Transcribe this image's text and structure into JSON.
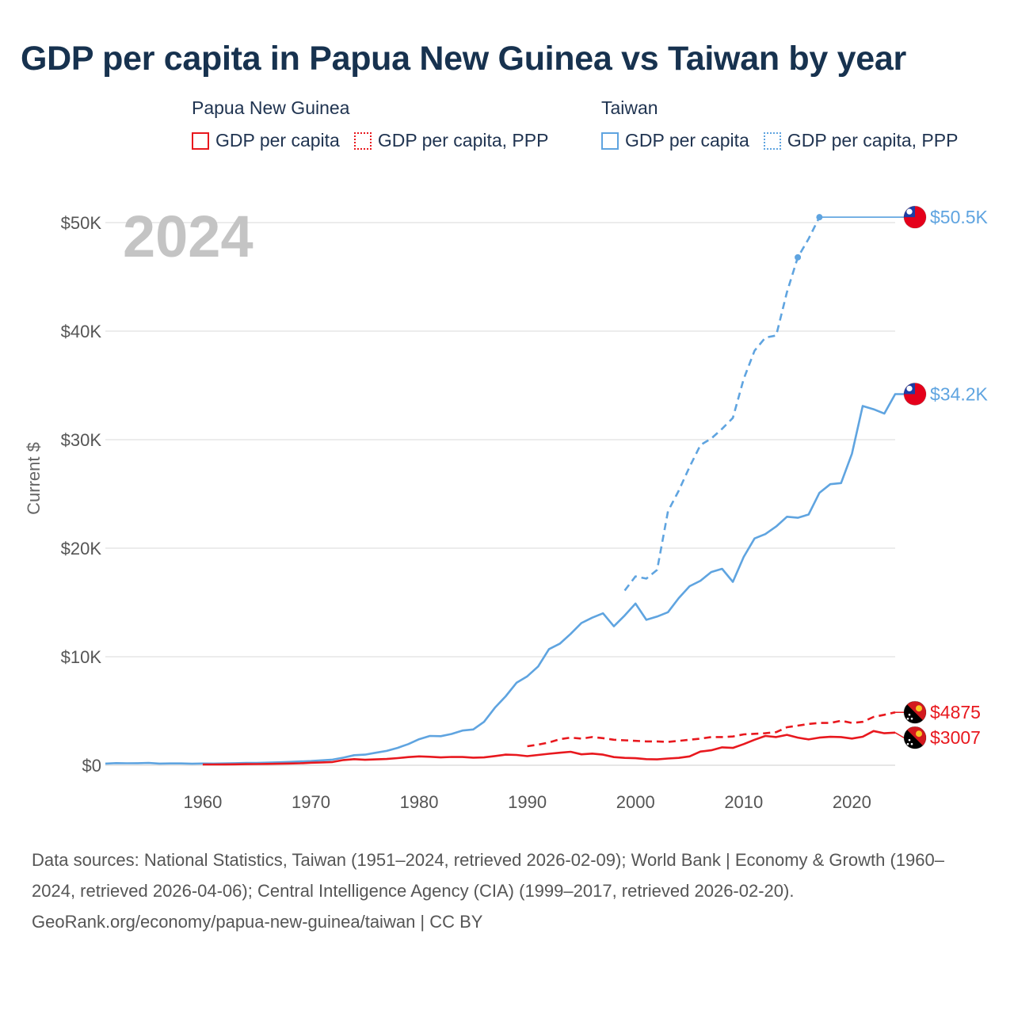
{
  "title": "GDP per capita in Papua New Guinea vs Taiwan by year",
  "legend": {
    "groups": [
      {
        "name": "Papua New Guinea",
        "color": "#e8181e",
        "items": [
          {
            "label": "GDP per capita",
            "style": "solid"
          },
          {
            "label": "GDP per capita, PPP",
            "style": "dotted"
          }
        ]
      },
      {
        "name": "Taiwan",
        "color": "#5fa4e0",
        "items": [
          {
            "label": "GDP per capita",
            "style": "solid"
          },
          {
            "label": "GDP per capita, PPP",
            "style": "dotted"
          }
        ]
      }
    ]
  },
  "footer": {
    "sources": "Data sources: National Statistics, Taiwan (1951–2024, retrieved 2026-02-09); World Bank | Economy & Growth (1960–2024, retrieved 2026-04-06); Central Intelligence Agency (CIA) (1999–2017, retrieved 2026-02-20).",
    "credit": "GeoRank.org/economy/papua-new-guinea/taiwan | CC BY"
  },
  "chart_data": {
    "type": "line",
    "title": "GDP per capita in Papua New Guinea vs Taiwan by year",
    "year_watermark": "2024",
    "xlabel": "",
    "ylabel": "Current $",
    "xlim": [
      1951,
      2024
    ],
    "ylim": [
      0,
      50500
    ],
    "x_ticks": [
      1960,
      1970,
      1980,
      1990,
      2000,
      2010,
      2020
    ],
    "y_ticks": [
      {
        "value": 0,
        "label": "$0"
      },
      {
        "value": 10000,
        "label": "$10K"
      },
      {
        "value": 20000,
        "label": "$20K"
      },
      {
        "value": 30000,
        "label": "$30K"
      },
      {
        "value": 40000,
        "label": "$40K"
      },
      {
        "value": 50000,
        "label": "$50K"
      }
    ],
    "grid": true,
    "series": [
      {
        "name": "Taiwan GDP per capita",
        "country": "Taiwan",
        "color": "#5fa4e0",
        "dash": "solid",
        "end_label": "$34.2K",
        "points": [
          [
            1951,
            154
          ],
          [
            1952,
            200
          ],
          [
            1953,
            180
          ],
          [
            1954,
            190
          ],
          [
            1955,
            210
          ],
          [
            1956,
            150
          ],
          [
            1957,
            170
          ],
          [
            1958,
            170
          ],
          [
            1959,
            140
          ],
          [
            1960,
            160
          ],
          [
            1961,
            150
          ],
          [
            1962,
            170
          ],
          [
            1963,
            190
          ],
          [
            1964,
            220
          ],
          [
            1965,
            220
          ],
          [
            1966,
            240
          ],
          [
            1967,
            270
          ],
          [
            1968,
            310
          ],
          [
            1969,
            350
          ],
          [
            1970,
            390
          ],
          [
            1971,
            450
          ],
          [
            1972,
            520
          ],
          [
            1973,
            700
          ],
          [
            1974,
            930
          ],
          [
            1975,
            980
          ],
          [
            1976,
            1150
          ],
          [
            1977,
            1320
          ],
          [
            1978,
            1600
          ],
          [
            1979,
            1950
          ],
          [
            1980,
            2400
          ],
          [
            1981,
            2700
          ],
          [
            1982,
            2680
          ],
          [
            1983,
            2880
          ],
          [
            1984,
            3200
          ],
          [
            1985,
            3300
          ],
          [
            1986,
            4000
          ],
          [
            1987,
            5300
          ],
          [
            1988,
            6350
          ],
          [
            1989,
            7600
          ],
          [
            1990,
            8200
          ],
          [
            1991,
            9100
          ],
          [
            1992,
            10700
          ],
          [
            1993,
            11200
          ],
          [
            1994,
            12100
          ],
          [
            1995,
            13100
          ],
          [
            1996,
            13600
          ],
          [
            1997,
            14000
          ],
          [
            1998,
            12800
          ],
          [
            1999,
            13800
          ],
          [
            2000,
            14900
          ],
          [
            2001,
            13400
          ],
          [
            2002,
            13700
          ],
          [
            2003,
            14100
          ],
          [
            2004,
            15400
          ],
          [
            2005,
            16500
          ],
          [
            2006,
            17000
          ],
          [
            2007,
            17800
          ],
          [
            2008,
            18100
          ],
          [
            2009,
            16900
          ],
          [
            2010,
            19200
          ],
          [
            2011,
            20900
          ],
          [
            2012,
            21300
          ],
          [
            2013,
            22000
          ],
          [
            2014,
            22900
          ],
          [
            2015,
            22800
          ],
          [
            2016,
            23100
          ],
          [
            2017,
            25100
          ],
          [
            2018,
            25900
          ],
          [
            2019,
            26000
          ],
          [
            2020,
            28700
          ],
          [
            2021,
            33100
          ],
          [
            2022,
            32800
          ],
          [
            2023,
            32400
          ],
          [
            2024,
            34200
          ],
          [
            2025,
            34200
          ]
        ]
      },
      {
        "name": "Taiwan GDP per capita, PPP",
        "country": "Taiwan",
        "color": "#5fa4e0",
        "dash": "dashed",
        "end_label": "$50.5K",
        "points": [
          [
            1999,
            16100
          ],
          [
            2000,
            17400
          ],
          [
            2001,
            17200
          ],
          [
            2002,
            18000
          ],
          [
            2003,
            23400
          ],
          [
            2004,
            25300
          ],
          [
            2005,
            27500
          ],
          [
            2006,
            29500
          ],
          [
            2007,
            30100
          ],
          [
            2008,
            31000
          ],
          [
            2009,
            32000
          ],
          [
            2010,
            35600
          ],
          [
            2011,
            38200
          ],
          [
            2012,
            39400
          ],
          [
            2013,
            39600
          ],
          [
            2014,
            43600
          ],
          [
            2015,
            46800
          ],
          [
            2016,
            48500
          ],
          [
            2017,
            50500
          ]
        ],
        "dots": [
          [
            2015,
            46800
          ],
          [
            2017,
            50500
          ]
        ],
        "carry_forward_to": 2025
      },
      {
        "name": "Papua New Guinea GDP per capita",
        "country": "Papua New Guinea",
        "color": "#e8181e",
        "dash": "solid",
        "end_label": "$3007",
        "points": [
          [
            1960,
            70
          ],
          [
            1961,
            75
          ],
          [
            1962,
            80
          ],
          [
            1963,
            90
          ],
          [
            1964,
            100
          ],
          [
            1965,
            110
          ],
          [
            1966,
            125
          ],
          [
            1967,
            140
          ],
          [
            1968,
            160
          ],
          [
            1969,
            180
          ],
          [
            1970,
            230
          ],
          [
            1971,
            260
          ],
          [
            1972,
            300
          ],
          [
            1973,
            480
          ],
          [
            1974,
            560
          ],
          [
            1975,
            500
          ],
          [
            1976,
            540
          ],
          [
            1977,
            580
          ],
          [
            1978,
            660
          ],
          [
            1979,
            750
          ],
          [
            1980,
            820
          ],
          [
            1981,
            780
          ],
          [
            1982,
            720
          ],
          [
            1983,
            770
          ],
          [
            1984,
            760
          ],
          [
            1985,
            700
          ],
          [
            1986,
            720
          ],
          [
            1987,
            850
          ],
          [
            1988,
            980
          ],
          [
            1989,
            950
          ],
          [
            1990,
            840
          ],
          [
            1991,
            950
          ],
          [
            1992,
            1060
          ],
          [
            1993,
            1150
          ],
          [
            1994,
            1240
          ],
          [
            1995,
            1010
          ],
          [
            1996,
            1070
          ],
          [
            1997,
            980
          ],
          [
            1998,
            750
          ],
          [
            1999,
            680
          ],
          [
            2000,
            650
          ],
          [
            2001,
            560
          ],
          [
            2002,
            540
          ],
          [
            2003,
            620
          ],
          [
            2004,
            680
          ],
          [
            2005,
            820
          ],
          [
            2006,
            1260
          ],
          [
            2007,
            1380
          ],
          [
            2008,
            1650
          ],
          [
            2009,
            1600
          ],
          [
            2010,
            1950
          ],
          [
            2011,
            2350
          ],
          [
            2012,
            2700
          ],
          [
            2013,
            2600
          ],
          [
            2014,
            2800
          ],
          [
            2015,
            2550
          ],
          [
            2016,
            2380
          ],
          [
            2017,
            2550
          ],
          [
            2018,
            2620
          ],
          [
            2019,
            2600
          ],
          [
            2020,
            2460
          ],
          [
            2021,
            2630
          ],
          [
            2022,
            3150
          ],
          [
            2023,
            2950
          ],
          [
            2024,
            3007
          ]
        ]
      },
      {
        "name": "Papua New Guinea GDP per capita, PPP",
        "country": "Papua New Guinea",
        "color": "#e8181e",
        "dash": "dashed",
        "end_label": "$4875",
        "points": [
          [
            1990,
            1750
          ],
          [
            1991,
            1900
          ],
          [
            1992,
            2100
          ],
          [
            1993,
            2400
          ],
          [
            1994,
            2550
          ],
          [
            1995,
            2450
          ],
          [
            1996,
            2600
          ],
          [
            1997,
            2500
          ],
          [
            1998,
            2350
          ],
          [
            1999,
            2300
          ],
          [
            2000,
            2250
          ],
          [
            2001,
            2200
          ],
          [
            2002,
            2200
          ],
          [
            2003,
            2150
          ],
          [
            2004,
            2250
          ],
          [
            2005,
            2350
          ],
          [
            2006,
            2450
          ],
          [
            2007,
            2600
          ],
          [
            2008,
            2600
          ],
          [
            2009,
            2650
          ],
          [
            2010,
            2850
          ],
          [
            2011,
            2900
          ],
          [
            2012,
            2950
          ],
          [
            2013,
            3050
          ],
          [
            2014,
            3500
          ],
          [
            2015,
            3650
          ],
          [
            2016,
            3800
          ],
          [
            2017,
            3900
          ],
          [
            2018,
            3900
          ],
          [
            2019,
            4100
          ],
          [
            2020,
            3900
          ],
          [
            2021,
            4000
          ],
          [
            2022,
            4450
          ],
          [
            2023,
            4650
          ],
          [
            2024,
            4875
          ]
        ]
      }
    ]
  }
}
